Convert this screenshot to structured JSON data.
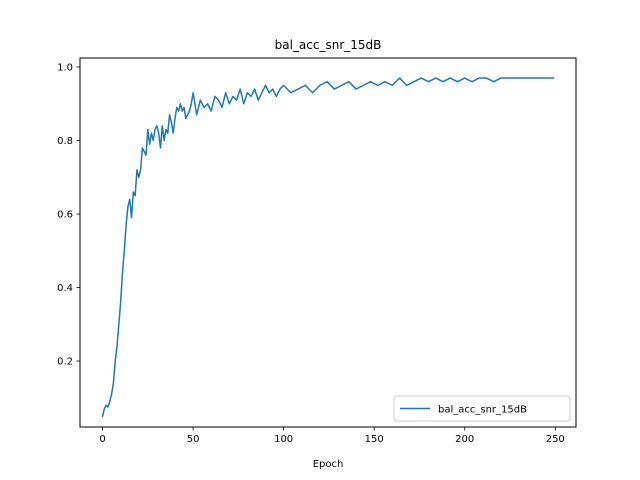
{
  "chart_data": {
    "type": "line",
    "title": "bal_acc_snr_15dB",
    "xlabel": "Epoch",
    "ylabel": "",
    "xlim": [
      -12.45,
      261.45
    ],
    "ylim": [
      0.0205,
      1.0245
    ],
    "xticks": [
      0,
      50,
      100,
      150,
      200,
      250
    ],
    "yticks": [
      0.2,
      0.4,
      0.6,
      0.8,
      1.0
    ],
    "ytick_labels": [
      "0.2",
      "0.4",
      "0.6",
      "0.8",
      "1.0"
    ],
    "grid": false,
    "legend_position": "lower right",
    "series": [
      {
        "name": "bal_acc_snr_15dB",
        "color": "#1f77b4",
        "x": [
          0,
          1,
          2,
          3,
          4,
          5,
          6,
          7,
          8,
          9,
          10,
          11,
          12,
          13,
          14,
          15,
          16,
          17,
          18,
          19,
          20,
          21,
          22,
          23,
          24,
          25,
          26,
          27,
          28,
          29,
          30,
          31,
          32,
          33,
          34,
          35,
          36,
          37,
          38,
          39,
          40,
          41,
          42,
          43,
          44,
          45,
          46,
          47,
          48,
          49,
          50,
          52,
          54,
          56,
          58,
          60,
          62,
          64,
          66,
          68,
          70,
          72,
          74,
          76,
          78,
          80,
          82,
          84,
          86,
          88,
          90,
          92,
          94,
          96,
          98,
          100,
          104,
          108,
          112,
          116,
          120,
          124,
          128,
          132,
          136,
          140,
          144,
          148,
          152,
          156,
          160,
          164,
          168,
          172,
          176,
          180,
          184,
          188,
          192,
          196,
          200,
          204,
          208,
          212,
          216,
          220,
          224,
          228,
          232,
          236,
          240,
          244,
          249
        ],
        "y": [
          0.05,
          0.07,
          0.08,
          0.075,
          0.09,
          0.11,
          0.14,
          0.2,
          0.24,
          0.3,
          0.36,
          0.44,
          0.5,
          0.57,
          0.62,
          0.64,
          0.59,
          0.66,
          0.65,
          0.72,
          0.7,
          0.72,
          0.78,
          0.77,
          0.76,
          0.83,
          0.79,
          0.82,
          0.8,
          0.83,
          0.84,
          0.82,
          0.78,
          0.84,
          0.8,
          0.83,
          0.82,
          0.87,
          0.85,
          0.82,
          0.86,
          0.89,
          0.88,
          0.9,
          0.88,
          0.89,
          0.86,
          0.87,
          0.88,
          0.9,
          0.93,
          0.87,
          0.91,
          0.89,
          0.9,
          0.88,
          0.92,
          0.91,
          0.89,
          0.93,
          0.9,
          0.92,
          0.91,
          0.94,
          0.9,
          0.93,
          0.92,
          0.94,
          0.91,
          0.93,
          0.95,
          0.93,
          0.94,
          0.92,
          0.94,
          0.95,
          0.93,
          0.94,
          0.95,
          0.93,
          0.95,
          0.96,
          0.94,
          0.95,
          0.96,
          0.94,
          0.95,
          0.96,
          0.95,
          0.96,
          0.95,
          0.97,
          0.95,
          0.96,
          0.97,
          0.96,
          0.97,
          0.96,
          0.97,
          0.96,
          0.97,
          0.96,
          0.97,
          0.97,
          0.96,
          0.97,
          0.97,
          0.97,
          0.97,
          0.97,
          0.97,
          0.97,
          0.97
        ]
      }
    ]
  }
}
